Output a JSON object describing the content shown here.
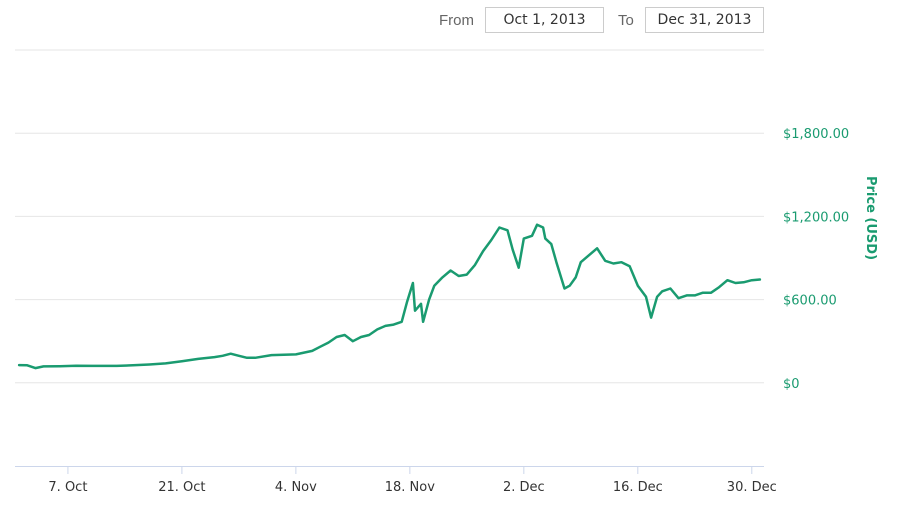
{
  "date_range": {
    "from_label": "From",
    "from_value": "Oct 1, 2013",
    "to_label": "To",
    "to_value": "Dec 31, 2013"
  },
  "chart_data": {
    "type": "line",
    "title": "",
    "xlabel": "",
    "ylabel": "Price (USD)",
    "x_range": [
      "2013-10-01",
      "2013-12-31"
    ],
    "ylim": [
      -600,
      2400
    ],
    "y_ticks": [
      {
        "value": 0,
        "label": "$0"
      },
      {
        "value": 600,
        "label": "$600.00"
      },
      {
        "value": 1200,
        "label": "$1,200.00"
      },
      {
        "value": 1800,
        "label": "$1,800.00"
      }
    ],
    "x_ticks": [
      {
        "date": "2013-10-07",
        "label": "7. Oct"
      },
      {
        "date": "2013-10-21",
        "label": "21. Oct"
      },
      {
        "date": "2013-11-04",
        "label": "4. Nov"
      },
      {
        "date": "2013-11-18",
        "label": "18. Nov"
      },
      {
        "date": "2013-12-02",
        "label": "2. Dec"
      },
      {
        "date": "2013-12-16",
        "label": "16. Dec"
      },
      {
        "date": "2013-12-30",
        "label": "30. Dec"
      }
    ],
    "grid": true,
    "line_color": "#1a9b70",
    "series": [
      {
        "name": "",
        "points": [
          [
            "2013-10-01",
            128
          ],
          [
            "2013-10-02",
            126
          ],
          [
            "2013-10-03",
            106
          ],
          [
            "2013-10-04",
            118
          ],
          [
            "2013-10-06",
            120
          ],
          [
            "2013-10-08",
            123
          ],
          [
            "2013-10-10",
            122
          ],
          [
            "2013-10-13",
            122
          ],
          [
            "2013-10-15",
            126
          ],
          [
            "2013-10-17",
            132
          ],
          [
            "2013-10-19",
            140
          ],
          [
            "2013-10-21",
            155
          ],
          [
            "2013-10-23",
            172
          ],
          [
            "2013-10-25",
            185
          ],
          [
            "2013-10-26",
            195
          ],
          [
            "2013-10-27",
            210
          ],
          [
            "2013-10-28",
            195
          ],
          [
            "2013-10-29",
            180
          ],
          [
            "2013-10-30",
            180
          ],
          [
            "2013-11-01",
            200
          ],
          [
            "2013-11-04",
            205
          ],
          [
            "2013-11-06",
            230
          ],
          [
            "2013-11-07",
            260
          ],
          [
            "2013-11-08",
            290
          ],
          [
            "2013-11-09",
            330
          ],
          [
            "2013-11-10",
            345
          ],
          [
            "2013-11-11",
            300
          ],
          [
            "2013-11-12",
            330
          ],
          [
            "2013-11-13",
            345
          ],
          [
            "2013-11-14",
            385
          ],
          [
            "2013-11-15",
            410
          ],
          [
            "2013-11-16",
            420
          ],
          [
            "2013-11-17",
            440
          ],
          [
            "2013-11-18",
            580
          ],
          [
            "2013-11-18",
            720
          ],
          [
            "2013-11-19",
            520
          ],
          [
            "2013-11-19",
            570
          ],
          [
            "2013-11-20",
            440
          ],
          [
            "2013-11-20",
            600
          ],
          [
            "2013-11-21",
            700
          ],
          [
            "2013-11-22",
            760
          ],
          [
            "2013-11-23",
            810
          ],
          [
            "2013-11-24",
            770
          ],
          [
            "2013-11-25",
            780
          ],
          [
            "2013-11-26",
            850
          ],
          [
            "2013-11-27",
            950
          ],
          [
            "2013-11-28",
            1030
          ],
          [
            "2013-11-29",
            1120
          ],
          [
            "2013-11-30",
            1100
          ],
          [
            "2013-12-01",
            960
          ],
          [
            "2013-12-01",
            830
          ],
          [
            "2013-12-02",
            1040
          ],
          [
            "2013-12-03",
            1060
          ],
          [
            "2013-12-04",
            1140
          ],
          [
            "2013-12-04",
            1120
          ],
          [
            "2013-12-05",
            1040
          ],
          [
            "2013-12-05",
            1000
          ],
          [
            "2013-12-06",
            870
          ],
          [
            "2013-12-07",
            680
          ],
          [
            "2013-12-08",
            700
          ],
          [
            "2013-12-08",
            760
          ],
          [
            "2013-12-09",
            870
          ],
          [
            "2013-12-10",
            920
          ],
          [
            "2013-12-11",
            970
          ],
          [
            "2013-12-12",
            880
          ],
          [
            "2013-12-13",
            860
          ],
          [
            "2013-12-14",
            870
          ],
          [
            "2013-12-15",
            840
          ],
          [
            "2013-12-16",
            700
          ],
          [
            "2013-12-17",
            620
          ],
          [
            "2013-12-18",
            470
          ],
          [
            "2013-12-18",
            620
          ],
          [
            "2013-12-19",
            660
          ],
          [
            "2013-12-20",
            680
          ],
          [
            "2013-12-21",
            610
          ],
          [
            "2013-12-22",
            630
          ],
          [
            "2013-12-23",
            630
          ],
          [
            "2013-12-24",
            650
          ],
          [
            "2013-12-25",
            650
          ],
          [
            "2013-12-26",
            690
          ],
          [
            "2013-12-27",
            740
          ],
          [
            "2013-12-28",
            720
          ],
          [
            "2013-12-29",
            725
          ],
          [
            "2013-12-30",
            740
          ],
          [
            "2013-12-31",
            745
          ]
        ]
      }
    ]
  }
}
